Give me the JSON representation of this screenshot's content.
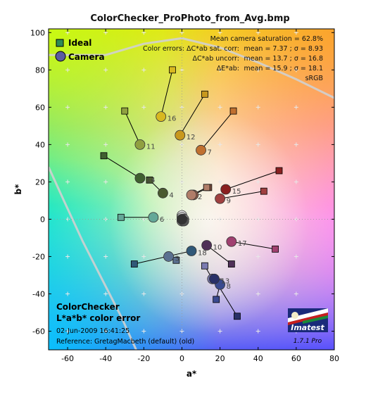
{
  "chart_data": {
    "type": "scatter",
    "title": "ColorChecker_ProPhoto_from_Avg.bmp",
    "xlabel": "a*",
    "ylabel": "b*",
    "xlim": [
      -70,
      80
    ],
    "ylim": [
      -70,
      102
    ],
    "xticks": [
      -60,
      -40,
      -20,
      0,
      20,
      40,
      60,
      80
    ],
    "yticks": [
      -60,
      -40,
      -20,
      0,
      20,
      40,
      60,
      80,
      100
    ],
    "grid": false,
    "legend": {
      "placement": "top-left",
      "entries": [
        {
          "name": "Ideal",
          "marker": "square",
          "color": "#2e8b57"
        },
        {
          "name": "Camera",
          "marker": "circle",
          "color": "#4a4a9a"
        }
      ]
    },
    "stats": {
      "line1": "Mean camera saturation = 62.8%",
      "line2_label": "Color errors:  ΔC*ab sat. corr:",
      "line2_value": "mean = 7.37 ;  σ = 8.93",
      "line3_label": "ΔC*ab uncorr:",
      "line3_value": "mean = 13.7 ;  σ = 16.8",
      "line4_label": "ΔE*ab:",
      "line4_value": "mean = 15.9 ;  σ = 18.1",
      "line5": "sRGB"
    },
    "info": {
      "heading1": "ColorChecker",
      "heading2": "L*a*b* color error",
      "date": "02-Jun-2009 16:41:25",
      "reference": "Reference: GretagMacbeth (default) (old)"
    },
    "logo": {
      "name": "Imatest",
      "version": "1.7.1  Pro"
    },
    "patches": [
      {
        "id": 1,
        "label": "",
        "ideal": [
          14,
          17
        ],
        "camera": [
          6,
          13
        ],
        "color": "#8a5a48"
      },
      {
        "id": 2,
        "label": "2",
        "ideal": [
          13,
          17
        ],
        "camera": [
          5,
          13
        ],
        "color": "#b07d69"
      },
      {
        "id": 3,
        "label": "3",
        "ideal": [
          -3,
          -22
        ],
        "camera": [
          -7,
          -20
        ],
        "color": "#5a7090"
      },
      {
        "id": 4,
        "label": "4",
        "ideal": [
          -17,
          21
        ],
        "camera": [
          -10,
          14
        ],
        "color": "#4a5a30"
      },
      {
        "id": 5,
        "label": "5",
        "ideal": [
          12,
          -25
        ],
        "camera": [
          16,
          -32
        ],
        "color": "#7a7ab0"
      },
      {
        "id": 6,
        "label": "6",
        "ideal": [
          -32,
          1
        ],
        "camera": [
          -15,
          1
        ],
        "color": "#64a898"
      },
      {
        "id": 7,
        "label": "7",
        "ideal": [
          27,
          58
        ],
        "camera": [
          10,
          37
        ],
        "color": "#c07030"
      },
      {
        "id": 8,
        "label": "8",
        "ideal": [
          18,
          -43
        ],
        "camera": [
          20,
          -35
        ],
        "color": "#3a4a90"
      },
      {
        "id": 9,
        "label": "9",
        "ideal": [
          43,
          15
        ],
        "camera": [
          20,
          11
        ],
        "color": "#a04040"
      },
      {
        "id": 10,
        "label": "10",
        "ideal": [
          26,
          -24
        ],
        "camera": [
          13,
          -14
        ],
        "color": "#503058"
      },
      {
        "id": 11,
        "label": "11",
        "ideal": [
          -30,
          58
        ],
        "camera": [
          -22,
          40
        ],
        "color": "#90a040"
      },
      {
        "id": 12,
        "label": "12",
        "ideal": [
          12,
          67
        ],
        "camera": [
          -1,
          45
        ],
        "color": "#c8981e"
      },
      {
        "id": 13,
        "label": "13",
        "ideal": [
          29,
          -52
        ],
        "camera": [
          17,
          -32
        ],
        "color": "#283068"
      },
      {
        "id": 14,
        "label": "14",
        "ideal": [
          -41,
          34
        ],
        "camera": [
          -22,
          22
        ],
        "color": "#406030"
      },
      {
        "id": 15,
        "label": "15",
        "ideal": [
          51,
          26
        ],
        "camera": [
          23,
          16
        ],
        "color": "#8a2020"
      },
      {
        "id": 16,
        "label": "16",
        "ideal": [
          -5,
          80
        ],
        "camera": [
          -11,
          55
        ],
        "color": "#d8b820"
      },
      {
        "id": 17,
        "label": "17",
        "ideal": [
          49,
          -16
        ],
        "camera": [
          26,
          -12
        ],
        "color": "#a04070"
      },
      {
        "id": 18,
        "label": "18",
        "ideal": [
          -25,
          -24
        ],
        "camera": [
          5,
          -17
        ],
        "color": "#305878"
      },
      {
        "id": 19,
        "label": "",
        "ideal": [
          0,
          2
        ],
        "camera": [
          0,
          2
        ],
        "color": "#f0f0f0"
      },
      {
        "id": 20,
        "label": "",
        "ideal": [
          0,
          1
        ],
        "camera": [
          0,
          1
        ],
        "color": "#c0c0c0"
      },
      {
        "id": 21,
        "label": "",
        "ideal": [
          0,
          0
        ],
        "camera": [
          1,
          0
        ],
        "color": "#a0a0a0"
      },
      {
        "id": 22,
        "label": "",
        "ideal": [
          0,
          0
        ],
        "camera": [
          0,
          -1
        ],
        "color": "#7a7a7a"
      },
      {
        "id": 23,
        "label": "",
        "ideal": [
          0,
          0
        ],
        "camera": [
          1,
          -1
        ],
        "color": "#555555"
      },
      {
        "id": 24,
        "label": "",
        "ideal": [
          0,
          0
        ],
        "camera": [
          0,
          0
        ],
        "color": "#333333"
      }
    ]
  }
}
